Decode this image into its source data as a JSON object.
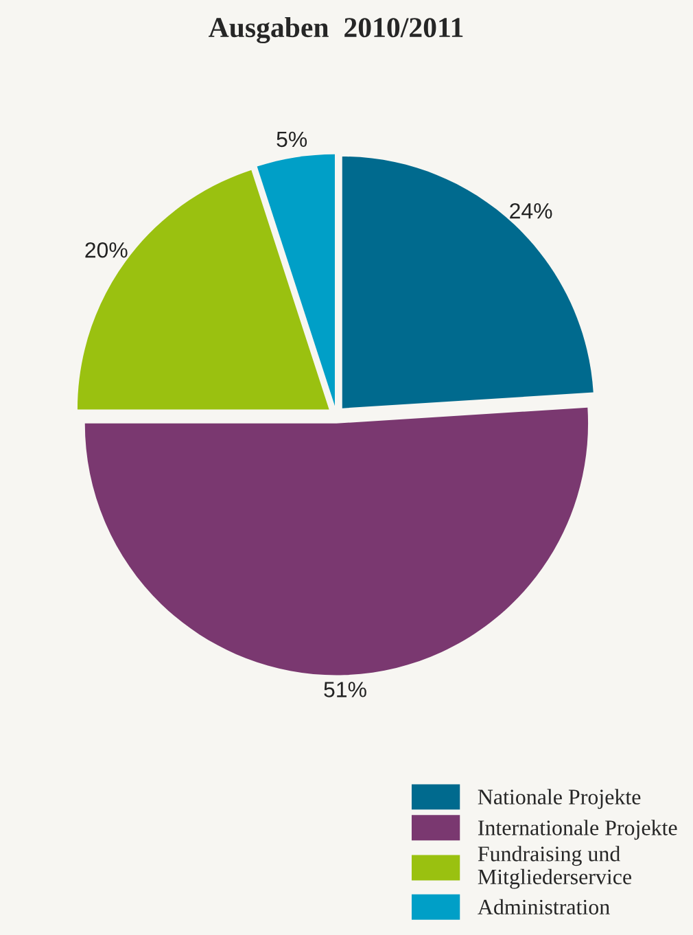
{
  "chart_data": {
    "type": "pie",
    "title": "Ausgaben  2010/2011",
    "categories": [
      "Nationale Projekte",
      "Internationale Projekte",
      "Fundraising und\nMitgliederservice",
      "Administration"
    ],
    "values": [
      24,
      51,
      20,
      5
    ],
    "value_labels": [
      "24%",
      "51%",
      "20%",
      "5%"
    ],
    "colors": [
      "#006a8e",
      "#7a3870",
      "#9ac110",
      "#009fc7"
    ],
    "legend": "bottom right"
  }
}
